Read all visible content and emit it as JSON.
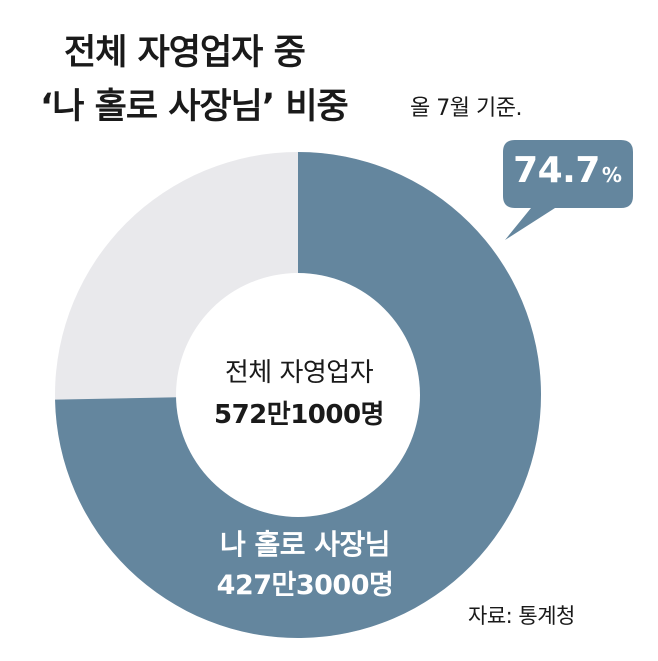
{
  "title": {
    "line1": "전체 자영업자 중",
    "line2": "‘나 홀로 사장님’ 비중",
    "subtitle": "올 7월 기준."
  },
  "center": {
    "label": "전체 자영업자",
    "value": "572만1000명"
  },
  "segment_label": {
    "name": "나 홀로 사장님",
    "value": "427만3000명"
  },
  "callout": {
    "value": "74.7",
    "unit": "%"
  },
  "source": "자료: 통계청",
  "colors": {
    "primary": "#64869e",
    "remainder": "#e9e9ec",
    "hole": "#ffffff"
  },
  "chart_data": {
    "type": "pie",
    "donut": true,
    "total_label": "전체 자영업자",
    "total": "572만1000명",
    "slices": [
      {
        "label": "나 홀로 사장님",
        "count": "427만3000명",
        "percent": 74.7
      },
      {
        "label": "",
        "percent": 25.3
      }
    ]
  }
}
